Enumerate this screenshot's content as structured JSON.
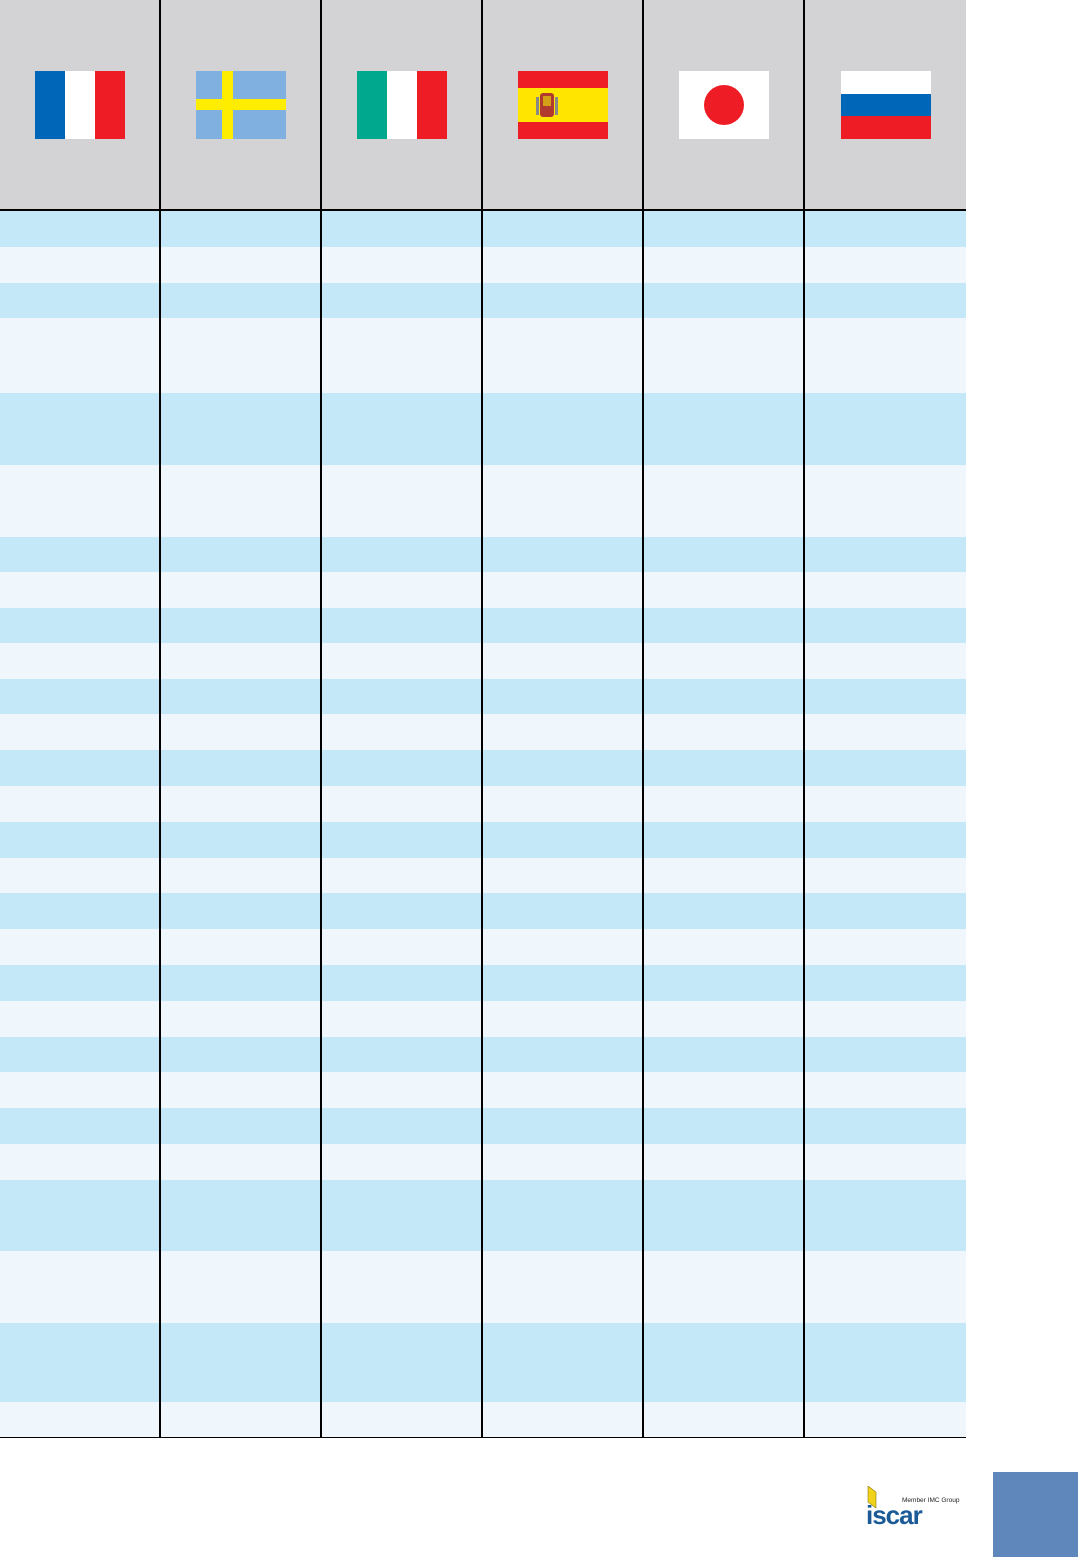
{
  "header": {
    "flags": [
      {
        "icon": "france-flag-icon"
      },
      {
        "icon": "sweden-flag-icon"
      },
      {
        "icon": "italy-flag-icon"
      },
      {
        "icon": "spain-flag-icon"
      },
      {
        "icon": "japan-flag-icon"
      },
      {
        "icon": "russia-flag-icon"
      }
    ]
  },
  "table": {
    "columns": 6,
    "rows": 28
  },
  "colors": {
    "header_bg": "#d3d3d5",
    "row_odd": "#c5e8f8",
    "row_even": "#eff7fd",
    "page_tab": "#5f87bc"
  },
  "footer": {
    "logo_text": "iscar",
    "logo_tagline": "Member IMC Group"
  }
}
